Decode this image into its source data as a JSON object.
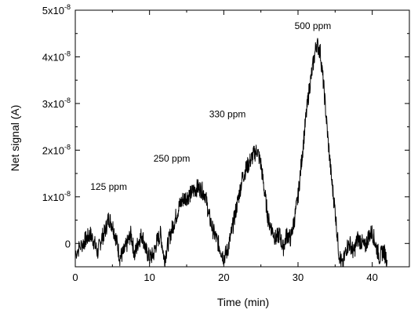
{
  "chart_data": {
    "type": "line",
    "title": "",
    "xlabel": "Time (min)",
    "ylabel": "Net signal (A)",
    "xlim": [
      0,
      45
    ],
    "ylim": [
      -5e-09,
      5e-08
    ],
    "x_ticks": [
      {
        "value": 0,
        "label": "0"
      },
      {
        "value": 10,
        "label": "10"
      },
      {
        "value": 20,
        "label": "20"
      },
      {
        "value": 30,
        "label": "30"
      },
      {
        "value": 40,
        "label": "40"
      }
    ],
    "y_ticks": [
      {
        "value": 0,
        "mant": "0",
        "exp": ""
      },
      {
        "value": 1e-08,
        "mant": "1x10",
        "exp": "-8"
      },
      {
        "value": 2e-08,
        "mant": "2x10",
        "exp": "-8"
      },
      {
        "value": 3e-08,
        "mant": "3x10",
        "exp": "-8"
      },
      {
        "value": 4e-08,
        "mant": "4x10",
        "exp": "-8"
      },
      {
        "value": 5e-08,
        "mant": "5x10",
        "exp": "-8"
      }
    ],
    "annotations": [
      {
        "text": "125 ppm",
        "x": 4.5,
        "y": 1.15e-08
      },
      {
        "text": "250 ppm",
        "x": 13.0,
        "y": 1.75e-08
      },
      {
        "text": "330 ppm",
        "x": 20.5,
        "y": 2.7e-08
      },
      {
        "text": "500 ppm",
        "x": 32.0,
        "y": 4.6e-08
      }
    ],
    "series": [
      {
        "x": [
          0,
          1,
          1.5,
          2,
          2.5,
          3,
          3.5,
          4,
          4.5,
          5,
          5.5,
          6,
          6.5,
          7,
          7.5,
          8,
          8.5,
          9,
          9.5,
          10,
          10.5,
          11,
          11.5,
          12,
          12.5,
          13,
          13.5,
          14,
          14.5,
          15,
          15.5,
          16,
          16.5,
          17,
          17.5,
          18,
          18.5,
          19,
          19.5,
          20,
          20.5,
          21,
          21.5,
          22,
          22.5,
          23,
          23.5,
          24,
          24.5,
          25,
          25.5,
          26,
          26.5,
          27,
          27.5,
          28,
          28.5,
          29,
          29.5,
          30,
          30.5,
          31,
          31.5,
          32,
          32.5,
          33,
          33.5,
          34,
          34.5,
          35,
          35.5,
          36,
          36.5,
          37,
          37.5,
          38,
          38.5,
          39,
          39.5,
          40,
          40.5,
          41,
          41.5,
          42
        ],
        "y": [
          -2e-09,
          0.0,
          1e-09,
          2e-09,
          5e-10,
          -2e-09,
          1e-09,
          2.5e-09,
          5.5e-09,
          4e-09,
          1e-09,
          -3e-09,
          -2e-09,
          0.0,
          2e-09,
          -2.5e-09,
          5e-10,
          2e-09,
          -1.5e-09,
          -3e-09,
          -2.5e-09,
          5e-10,
          2e-09,
          -3.5e-09,
          0.0,
          3e-09,
          5.5e-09,
          8e-09,
          9.5e-09,
          1e-08,
          1.05e-08,
          1.15e-08,
          1.2e-08,
          1.15e-08,
          1.05e-08,
          6e-09,
          3e-09,
          1e-09,
          -1e-09,
          -3e-09,
          -1.5e-09,
          2e-09,
          6e-09,
          1e-08,
          1.4e-08,
          1.6e-08,
          1.75e-08,
          1.9e-08,
          2e-08,
          1.7e-08,
          1.1e-08,
          5e-09,
          3e-09,
          1e-09,
          2e-09,
          -1e-09,
          2e-09,
          1e-09,
          5e-09,
          1e-08,
          1.8e-08,
          2.6e-08,
          3.3e-08,
          3.8e-08,
          4.3e-08,
          4.1e-08,
          3.3e-08,
          2.3e-08,
          1.4e-08,
          7e-09,
          -2e-09,
          -5e-09,
          -1e-09,
          0.0,
          -2e-09,
          1e-09,
          5e-10,
          -1e-09,
          1.5e-09,
          2.5e-09,
          -5e-10,
          -3e-09,
          -1.5e-09,
          -3.5e-09
        ]
      }
    ],
    "grid": false
  }
}
